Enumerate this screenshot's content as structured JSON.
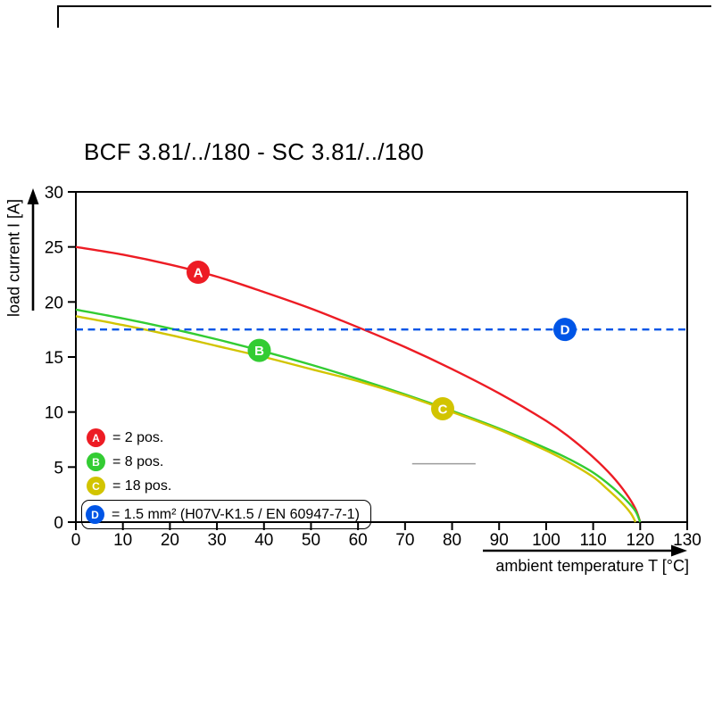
{
  "chart_data": {
    "type": "line",
    "title": "BCF 3.81/../180 - SC 3.81/../180",
    "xlabel": "ambient temperature T [°C]",
    "ylabel": "load current I [A]",
    "xlim": [
      0,
      130
    ],
    "ylim": [
      0,
      30
    ],
    "xticks": [
      0,
      10,
      20,
      30,
      40,
      50,
      60,
      70,
      80,
      90,
      100,
      110,
      120,
      130
    ],
    "yticks": [
      0,
      5,
      10,
      15,
      20,
      25,
      30
    ],
    "grid": false,
    "legend_position": "lower-left",
    "series": [
      {
        "id": "A",
        "label": "= 2 pos.",
        "color": "#ed1c24",
        "line_style": "solid",
        "marker": {
          "x": 26,
          "y": 22.7
        },
        "points": [
          [
            0,
            25
          ],
          [
            10,
            24.3
          ],
          [
            20,
            23.4
          ],
          [
            30,
            22.3
          ],
          [
            40,
            20.9
          ],
          [
            50,
            19.4
          ],
          [
            60,
            17.7
          ],
          [
            70,
            15.9
          ],
          [
            80,
            13.9
          ],
          [
            90,
            11.7
          ],
          [
            100,
            9.2
          ],
          [
            105,
            7.7
          ],
          [
            110,
            5.9
          ],
          [
            114,
            4.2
          ],
          [
            117,
            2.6
          ],
          [
            119,
            1.2
          ],
          [
            120,
            0
          ]
        ]
      },
      {
        "id": "B",
        "label": "= 8 pos.",
        "color": "#33cc33",
        "line_style": "solid",
        "marker": {
          "x": 39,
          "y": 15.6
        },
        "points": [
          [
            0,
            19.3
          ],
          [
            10,
            18.5
          ],
          [
            20,
            17.6
          ],
          [
            30,
            16.6
          ],
          [
            40,
            15.5
          ],
          [
            50,
            14.3
          ],
          [
            60,
            13.0
          ],
          [
            70,
            11.6
          ],
          [
            80,
            10.1
          ],
          [
            90,
            8.5
          ],
          [
            100,
            6.7
          ],
          [
            105,
            5.7
          ],
          [
            110,
            4.5
          ],
          [
            114,
            3.2
          ],
          [
            117,
            2.0
          ],
          [
            119,
            1.0
          ],
          [
            120,
            0
          ]
        ]
      },
      {
        "id": "C",
        "label": "= 18 pos.",
        "color": "#d2c400",
        "line_style": "solid",
        "marker": {
          "x": 78,
          "y": 10.3
        },
        "points": [
          [
            0,
            18.7
          ],
          [
            10,
            17.9
          ],
          [
            20,
            17.0
          ],
          [
            30,
            16.0
          ],
          [
            40,
            15.0
          ],
          [
            50,
            13.9
          ],
          [
            60,
            12.8
          ],
          [
            70,
            11.5
          ],
          [
            80,
            10.0
          ],
          [
            90,
            8.4
          ],
          [
            100,
            6.5
          ],
          [
            105,
            5.4
          ],
          [
            110,
            4.1
          ],
          [
            113,
            3.0
          ],
          [
            116,
            1.8
          ],
          [
            118,
            0.8
          ],
          [
            119,
            0
          ]
        ]
      },
      {
        "id": "D",
        "label": "= 1.5 mm² (H07V-K1.5 / EN 60947-7-1)",
        "color": "#0055e6",
        "line_style": "dashed",
        "marker": {
          "x": 104,
          "y": 17.5
        },
        "points": [
          [
            0,
            17.5
          ],
          [
            130,
            17.5
          ]
        ]
      }
    ],
    "annotations": [
      {
        "type": "segment",
        "x1": 71.5,
        "y1": 5.3,
        "x2": 85,
        "y2": 5.3,
        "color": "#9c9c9c"
      }
    ]
  }
}
